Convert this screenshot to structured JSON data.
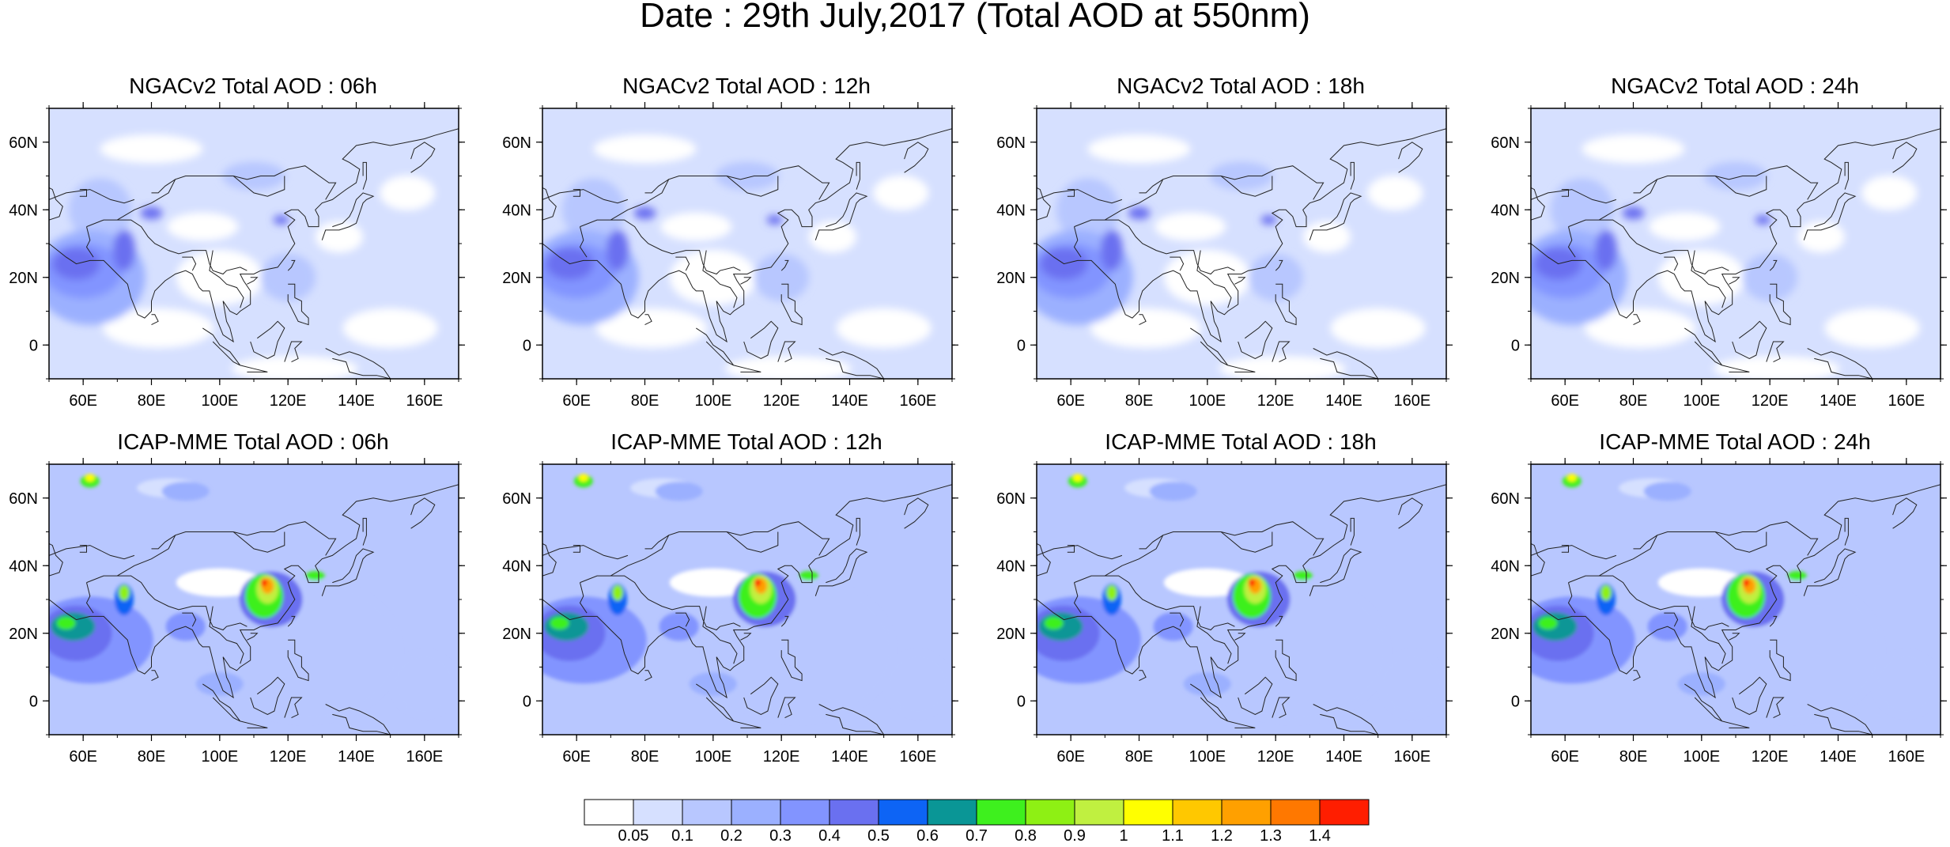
{
  "title": "Date : 29th July,2017 (Total AOD at 550nm)",
  "lon_labels": [
    "60E",
    "80E",
    "100E",
    "120E",
    "140E",
    "160E"
  ],
  "lat_labels": [
    "60N",
    "40N",
    "20N",
    "0"
  ],
  "lon_values": [
    60,
    80,
    100,
    120,
    140,
    160
  ],
  "lat_values": [
    60,
    40,
    20,
    0
  ],
  "map_extent": {
    "lon": [
      50,
      170
    ],
    "lat": [
      -10,
      70
    ]
  },
  "panels": [
    {
      "title": "NGACv2 Total AOD : 06h",
      "model": "NGACv2",
      "hour": 6
    },
    {
      "title": "NGACv2 Total AOD : 12h",
      "model": "NGACv2",
      "hour": 12
    },
    {
      "title": "NGACv2 Total AOD : 18h",
      "model": "NGACv2",
      "hour": 18
    },
    {
      "title": "NGACv2 Total AOD : 24h",
      "model": "NGACv2",
      "hour": 24
    },
    {
      "title": "ICAP-MME Total AOD : 06h",
      "model": "ICAP-MME",
      "hour": 6
    },
    {
      "title": "ICAP-MME Total AOD : 12h",
      "model": "ICAP-MME",
      "hour": 12
    },
    {
      "title": "ICAP-MME Total AOD : 18h",
      "model": "ICAP-MME",
      "hour": 18
    },
    {
      "title": "ICAP-MME Total AOD : 24h",
      "model": "ICAP-MME",
      "hour": 24
    }
  ],
  "colorbar": {
    "levels": [
      "0.05",
      "0.1",
      "0.2",
      "0.3",
      "0.4",
      "0.5",
      "0.6",
      "0.7",
      "0.8",
      "0.9",
      "1",
      "1.1",
      "1.2",
      "1.3",
      "1.4"
    ],
    "colors": [
      "#ffffff",
      "#d6e0ff",
      "#b8c7ff",
      "#9bb0ff",
      "#8294ff",
      "#6a70f0",
      "#0d64f5",
      "#0a9696",
      "#3ef01e",
      "#8ef014",
      "#c0f040",
      "#ffff00",
      "#ffc800",
      "#ffa000",
      "#ff7800",
      "#ff1e00"
    ]
  }
}
